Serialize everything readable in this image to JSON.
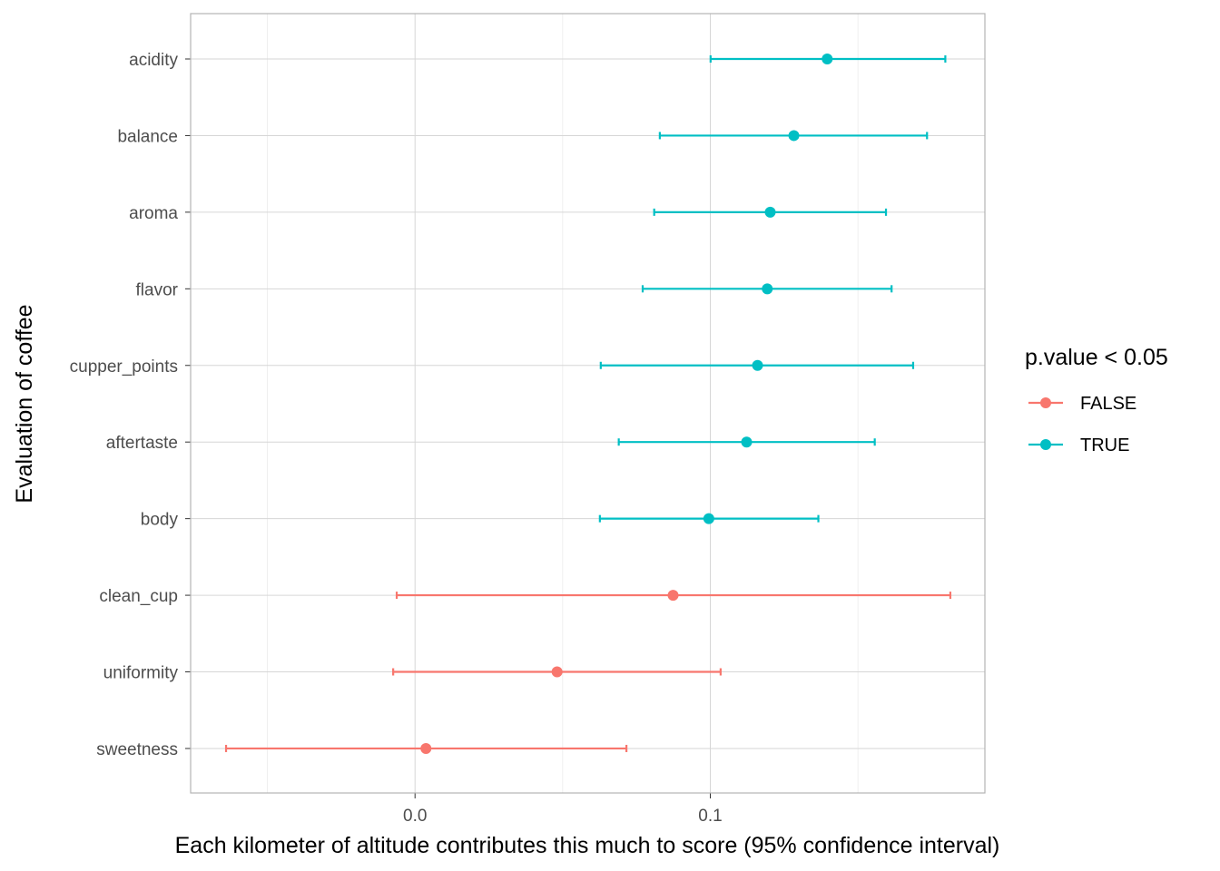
{
  "chart_data": {
    "type": "scatter",
    "xlabel": "Each kilometer of altitude contributes this much to score (95% confidence interval)",
    "ylabel": "Evaluation of coffee",
    "xlim": [
      -0.076,
      0.193
    ],
    "x_ticks": [
      0.0,
      0.1
    ],
    "x_tick_labels": [
      "0.0",
      "0.1"
    ],
    "x_minor_ticks": [
      -0.05,
      0.05,
      0.15
    ],
    "grid": true,
    "legend": {
      "title": "p.value < 0.05",
      "position": "right",
      "entries": [
        {
          "label": "FALSE",
          "color": "#F8766D"
        },
        {
          "label": "TRUE",
          "color": "#00BFC4"
        }
      ]
    },
    "categories": [
      "acidity",
      "balance",
      "aroma",
      "flavor",
      "cupper_points",
      "aftertaste",
      "body",
      "clean_cup",
      "uniformity",
      "sweetness"
    ],
    "points": [
      {
        "term": "acidity",
        "estimate": 0.1396,
        "conf_low": 0.1001,
        "conf_high": 0.1796,
        "significant": "TRUE"
      },
      {
        "term": "balance",
        "estimate": 0.1283,
        "conf_low": 0.0829,
        "conf_high": 0.1734,
        "significant": "TRUE"
      },
      {
        "term": "aroma",
        "estimate": 0.1203,
        "conf_low": 0.081,
        "conf_high": 0.1595,
        "significant": "TRUE"
      },
      {
        "term": "flavor",
        "estimate": 0.1193,
        "conf_low": 0.0771,
        "conf_high": 0.1614,
        "significant": "TRUE"
      },
      {
        "term": "cupper_points",
        "estimate": 0.116,
        "conf_low": 0.0629,
        "conf_high": 0.1687,
        "significant": "TRUE"
      },
      {
        "term": "aftertaste",
        "estimate": 0.1123,
        "conf_low": 0.069,
        "conf_high": 0.1557,
        "significant": "TRUE"
      },
      {
        "term": "body",
        "estimate": 0.0995,
        "conf_low": 0.0626,
        "conf_high": 0.1366,
        "significant": "TRUE"
      },
      {
        "term": "clean_cup",
        "estimate": 0.0874,
        "conf_low": -0.0062,
        "conf_high": 0.1813,
        "significant": "FALSE"
      },
      {
        "term": "uniformity",
        "estimate": 0.0481,
        "conf_low": -0.0074,
        "conf_high": 0.1035,
        "significant": "FALSE"
      },
      {
        "term": "sweetness",
        "estimate": 0.0037,
        "conf_low": -0.064,
        "conf_high": 0.0716,
        "significant": "FALSE"
      }
    ]
  }
}
